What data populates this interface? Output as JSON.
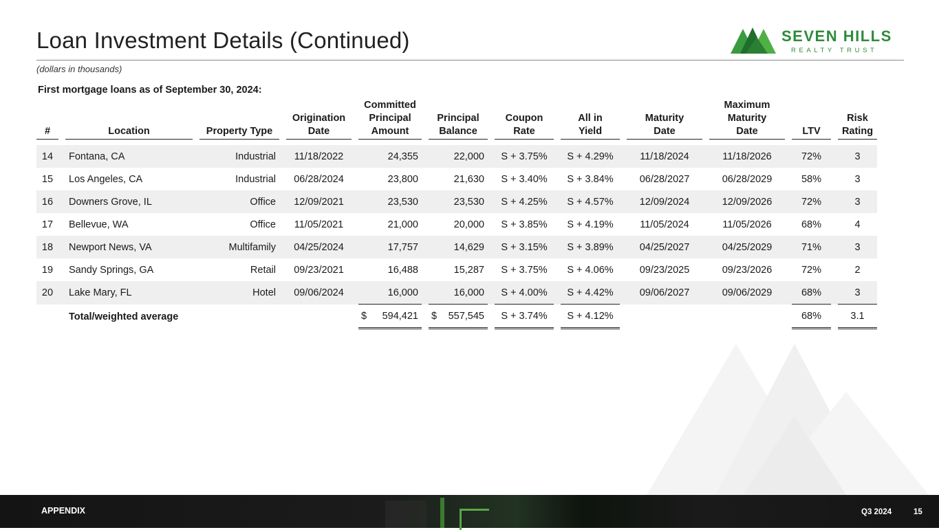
{
  "header": {
    "title": "Loan Investment Details (Continued)",
    "subtitle": "(dollars in thousands)",
    "logo_main": "SEVEN HILLS",
    "logo_sub": "REALTY TRUST"
  },
  "section_label": "First mortgage loans as of September 30, 2024:",
  "table": {
    "columns": {
      "num": "#",
      "location": "Location",
      "property_type": "Property Type",
      "origination_date": [
        "Origination",
        "Date"
      ],
      "committed_principal": [
        "Committed",
        "Principal",
        "Amount"
      ],
      "principal_balance": [
        "Principal",
        "Balance"
      ],
      "coupon_rate": [
        "Coupon",
        "Rate"
      ],
      "all_in_yield": [
        "All in",
        "Yield"
      ],
      "maturity_date": [
        "Maturity",
        "Date"
      ],
      "max_maturity": [
        "Maximum",
        "Maturity",
        "Date"
      ],
      "ltv": "LTV",
      "risk_rating": [
        "Risk",
        "Rating"
      ]
    },
    "rows": [
      {
        "num": "14",
        "location": "Fontana, CA",
        "property_type": "Industrial",
        "origination": "11/18/2022",
        "committed": "24,355",
        "balance": "22,000",
        "coupon": "S + 3.75%",
        "yield": "S + 4.29%",
        "maturity": "11/18/2024",
        "max_maturity": "11/18/2026",
        "ltv": "72%",
        "risk": "3"
      },
      {
        "num": "15",
        "location": "Los Angeles, CA",
        "property_type": "Industrial",
        "origination": "06/28/2024",
        "committed": "23,800",
        "balance": "21,630",
        "coupon": "S + 3.40%",
        "yield": "S + 3.84%",
        "maturity": "06/28/2027",
        "max_maturity": "06/28/2029",
        "ltv": "58%",
        "risk": "3"
      },
      {
        "num": "16",
        "location": "Downers Grove, IL",
        "property_type": "Office",
        "origination": "12/09/2021",
        "committed": "23,530",
        "balance": "23,530",
        "coupon": "S + 4.25%",
        "yield": "S + 4.57%",
        "maturity": "12/09/2024",
        "max_maturity": "12/09/2026",
        "ltv": "72%",
        "risk": "3"
      },
      {
        "num": "17",
        "location": "Bellevue, WA",
        "property_type": "Office",
        "origination": "11/05/2021",
        "committed": "21,000",
        "balance": "20,000",
        "coupon": "S + 3.85%",
        "yield": "S + 4.19%",
        "maturity": "11/05/2024",
        "max_maturity": "11/05/2026",
        "ltv": "68%",
        "risk": "4"
      },
      {
        "num": "18",
        "location": "Newport News, VA",
        "property_type": "Multifamily",
        "origination": "04/25/2024",
        "committed": "17,757",
        "balance": "14,629",
        "coupon": "S + 3.15%",
        "yield": "S + 3.89%",
        "maturity": "04/25/2027",
        "max_maturity": "04/25/2029",
        "ltv": "71%",
        "risk": "3"
      },
      {
        "num": "19",
        "location": "Sandy Springs, GA",
        "property_type": "Retail",
        "origination": "09/23/2021",
        "committed": "16,488",
        "balance": "15,287",
        "coupon": "S + 3.75%",
        "yield": "S + 4.06%",
        "maturity": "09/23/2025",
        "max_maturity": "09/23/2026",
        "ltv": "72%",
        "risk": "2"
      },
      {
        "num": "20",
        "location": "Lake Mary, FL",
        "property_type": "Hotel",
        "origination": "09/06/2024",
        "committed": "16,000",
        "balance": "16,000",
        "coupon": "S + 4.00%",
        "yield": "S + 4.42%",
        "maturity": "09/06/2027",
        "max_maturity": "09/06/2029",
        "ltv": "68%",
        "risk": "3"
      }
    ],
    "total": {
      "label": "Total/weighted average",
      "currency": "$",
      "committed": "594,421",
      "balance": "557,545",
      "coupon": "S + 3.74%",
      "yield": "S + 4.12%",
      "ltv": "68%",
      "risk": "3.1"
    }
  },
  "footer": {
    "section": "APPENDIX",
    "quarter": "Q3 2024",
    "page": "15"
  },
  "colors": {
    "brand_green": "#2e8b3b",
    "row_shade": "#efefef"
  }
}
